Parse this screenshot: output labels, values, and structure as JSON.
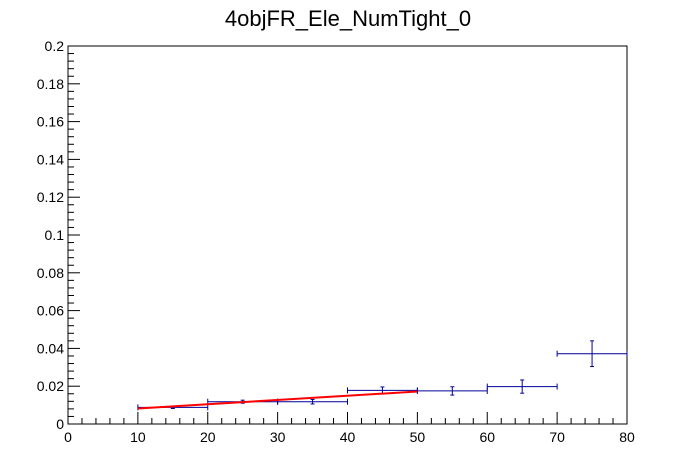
{
  "chart_data": {
    "type": "scatter",
    "title": "4objFR_Ele_NumTight_0",
    "xlabel": "",
    "ylabel": "",
    "xlim": [
      0,
      80
    ],
    "ylim": [
      0,
      0.2
    ],
    "x_ticks": [
      0,
      10,
      20,
      30,
      40,
      50,
      60,
      70,
      80
    ],
    "y_ticks": [
      0,
      0.02,
      0.04,
      0.06,
      0.08,
      0.1,
      0.12,
      0.14,
      0.16,
      0.18,
      0.2
    ],
    "x_tick_labels": [
      "0",
      "10",
      "20",
      "30",
      "40",
      "50",
      "60",
      "70",
      "80"
    ],
    "y_tick_labels": [
      "0",
      "0.02",
      "0.04",
      "0.06",
      "0.08",
      "0.1",
      "0.12",
      "0.14",
      "0.16",
      "0.18",
      "0.2"
    ],
    "grid": false,
    "series": [
      {
        "kind": "error_points",
        "color": "#000099",
        "points": [
          {
            "x": 15,
            "xerr": 5,
            "y": 0.0088,
            "yerr": 0.0006
          },
          {
            "x": 25,
            "xerr": 5,
            "y": 0.0118,
            "yerr": 0.0008
          },
          {
            "x": 35,
            "xerr": 5,
            "y": 0.0118,
            "yerr": 0.0012
          },
          {
            "x": 45,
            "xerr": 5,
            "y": 0.0178,
            "yerr": 0.0018
          },
          {
            "x": 55,
            "xerr": 5,
            "y": 0.0175,
            "yerr": 0.0022
          },
          {
            "x": 65,
            "xerr": 5,
            "y": 0.0198,
            "yerr": 0.0035
          },
          {
            "x": 75,
            "xerr": 5,
            "y": 0.0372,
            "yerr": 0.0068
          }
        ]
      },
      {
        "kind": "fit_line",
        "color": "#ff0000",
        "x": [
          10,
          50
        ],
        "y": [
          0.0082,
          0.0172
        ]
      }
    ]
  }
}
